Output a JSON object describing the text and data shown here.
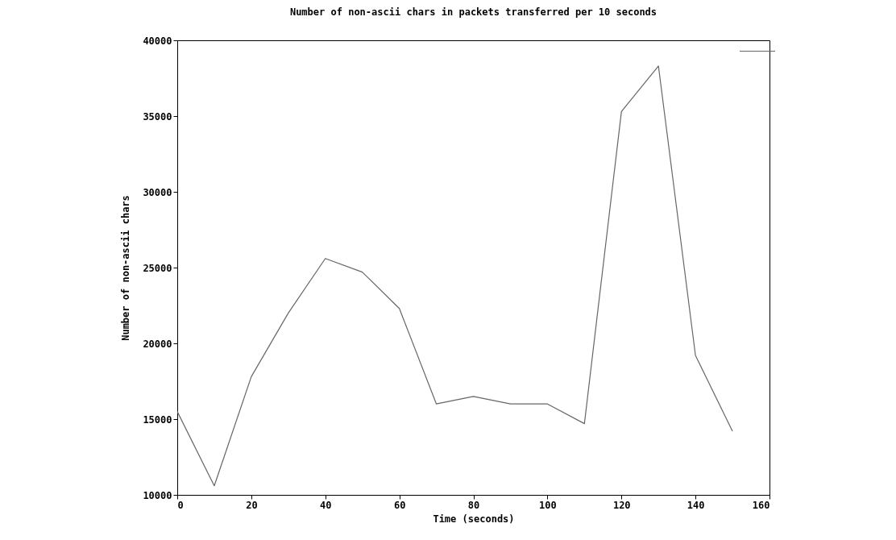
{
  "chart_data": {
    "type": "line",
    "title": "Number of non-ascii chars in packets transferred per 10 seconds",
    "xlabel": "Time (seconds)",
    "ylabel": "Number of non-ascii chars",
    "x": [
      0,
      10,
      20,
      30,
      40,
      50,
      60,
      70,
      80,
      90,
      100,
      110,
      120,
      130,
      140,
      150
    ],
    "series": [
      {
        "color": "#666666",
        "values": [
          15500,
          10600,
          17800,
          22000,
          25600,
          24700,
          22300,
          16000,
          16500,
          16000,
          16000,
          14700,
          35300,
          38300,
          19200,
          14200
        ]
      }
    ],
    "xlim": [
      0,
      160
    ],
    "xticks": [
      0,
      20,
      40,
      60,
      80,
      100,
      120,
      140,
      160
    ],
    "ylim": [
      10000,
      40000
    ],
    "yticks": [
      10000,
      15000,
      20000,
      25000,
      30000,
      35000,
      40000
    ],
    "grid": false,
    "marker": "none",
    "line_style": "solid"
  }
}
